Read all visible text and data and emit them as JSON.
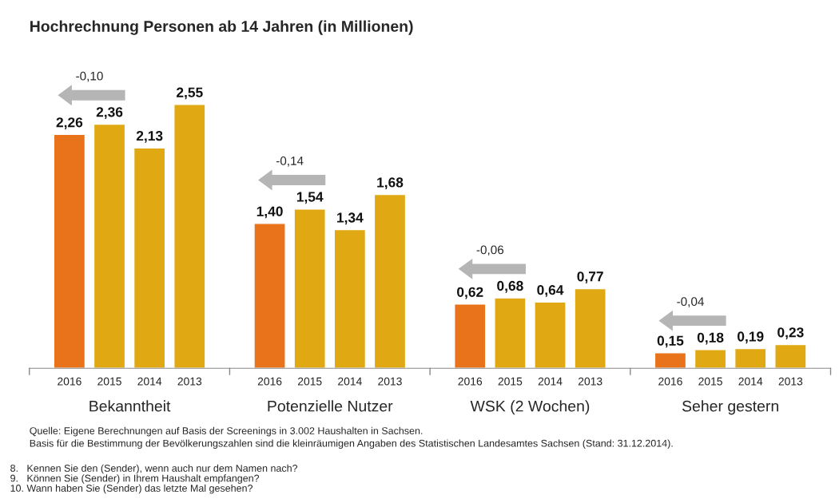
{
  "chart_data": {
    "type": "bar",
    "title": "Hochrechnung Personen ab 14 Jahren (in Millionen)",
    "categories": [
      "Bekanntheit",
      "Potenzielle Nutzer",
      "WSK (2 Wochen)",
      "Seher gestern"
    ],
    "series": [
      {
        "name": "2016",
        "color": "#e8731a",
        "values": [
          2.26,
          1.4,
          0.62,
          0.15
        ],
        "value_labels": [
          "2,26",
          "1,40",
          "0,62",
          "0,15"
        ]
      },
      {
        "name": "2015",
        "color": "#e0a812",
        "values": [
          2.36,
          1.54,
          0.68,
          0.18
        ],
        "value_labels": [
          "2,36",
          "1,54",
          "0,68",
          "0,18"
        ]
      },
      {
        "name": "2014",
        "color": "#e0a812",
        "values": [
          2.13,
          1.34,
          0.64,
          0.19
        ],
        "value_labels": [
          "2,13",
          "1,34",
          "0,64",
          "0,19"
        ]
      },
      {
        "name": "2013",
        "color": "#e0a812",
        "values": [
          2.55,
          1.68,
          0.77,
          0.23
        ],
        "value_labels": [
          "2,55",
          "1,68",
          "0,77",
          "0,23"
        ]
      }
    ],
    "legend": false,
    "grid": false,
    "annotations": [
      "-0,10",
      "-0,14",
      "-0,06",
      "-0,04",
      "Quelle: Eigene Berechnungen auf Basis der Screenings in 3.002 Haushalten in Sachsen.",
      "Basis für die Bestimmung der Bevölkerungszahlen sind die kleinräumigen Angaben des Statistischen Landesamtes Sachsen (Stand: 31.12.2014).",
      "8.   Kennen Sie den (Sender), wenn auch nur dem Namen nach?",
      "9.   Können Sie (Sender) in Ihrem Haushalt empfangen?",
      "10. Wann haben Sie (Sender) das letzte Mal gesehen?"
    ]
  }
}
